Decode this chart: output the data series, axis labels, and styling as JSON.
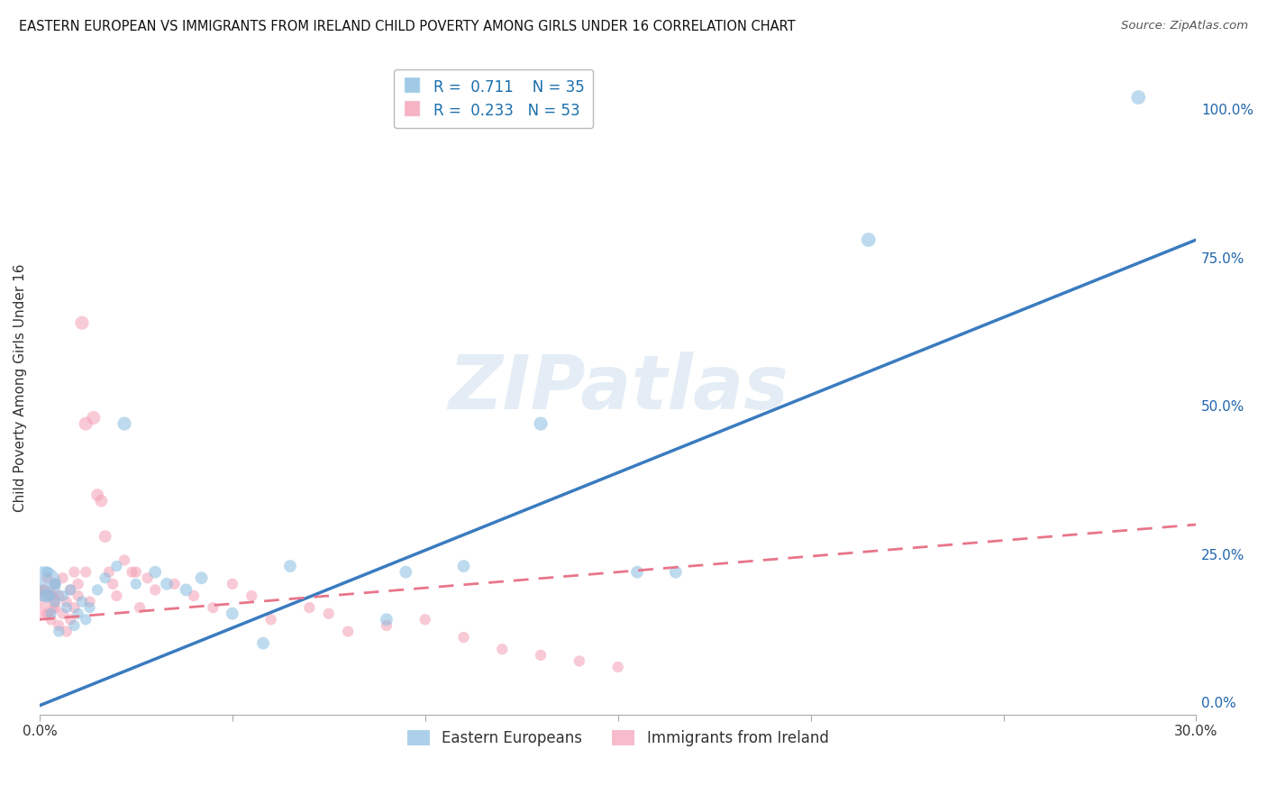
{
  "title": "EASTERN EUROPEAN VS IMMIGRANTS FROM IRELAND CHILD POVERTY AMONG GIRLS UNDER 16 CORRELATION CHART",
  "source": "Source: ZipAtlas.com",
  "ylabel": "Child Poverty Among Girls Under 16",
  "xlim": [
    0.0,
    0.3
  ],
  "ylim": [
    -0.02,
    1.08
  ],
  "xticks": [
    0.0,
    0.05,
    0.1,
    0.15,
    0.2,
    0.25,
    0.3
  ],
  "xticklabels": [
    "0.0%",
    "",
    "",
    "",
    "",
    "",
    "30.0%"
  ],
  "yticks_right": [
    0.0,
    0.25,
    0.5,
    0.75,
    1.0
  ],
  "ytickslabels_right": [
    "0.0%",
    "25.0%",
    "50.0%",
    "75.0%",
    "100.0%"
  ],
  "blue_color": "#89bde0",
  "pink_color": "#f4a0b5",
  "blue_line_color": "#3a7bbf",
  "pink_line_color": "#e8758a",
  "watermark_text": "ZIPatlas",
  "blue_scatter_x": [
    0.001,
    0.002,
    0.002,
    0.003,
    0.004,
    0.004,
    0.005,
    0.006,
    0.007,
    0.008,
    0.009,
    0.01,
    0.011,
    0.012,
    0.013,
    0.015,
    0.017,
    0.02,
    0.022,
    0.025,
    0.03,
    0.033,
    0.038,
    0.042,
    0.05,
    0.058,
    0.065,
    0.09,
    0.095,
    0.11,
    0.13,
    0.155,
    0.165,
    0.215,
    0.285
  ],
  "blue_scatter_y": [
    0.2,
    0.18,
    0.22,
    0.15,
    0.17,
    0.2,
    0.12,
    0.18,
    0.16,
    0.19,
    0.13,
    0.15,
    0.17,
    0.14,
    0.16,
    0.19,
    0.21,
    0.23,
    0.47,
    0.2,
    0.22,
    0.2,
    0.19,
    0.21,
    0.15,
    0.1,
    0.23,
    0.14,
    0.22,
    0.23,
    0.47,
    0.22,
    0.22,
    0.78,
    1.02
  ],
  "blue_scatter_size": [
    800,
    120,
    80,
    80,
    80,
    80,
    80,
    80,
    80,
    80,
    80,
    80,
    80,
    80,
    80,
    80,
    80,
    80,
    120,
    80,
    100,
    100,
    100,
    100,
    100,
    100,
    100,
    100,
    100,
    100,
    120,
    100,
    100,
    130,
    130
  ],
  "pink_scatter_x": [
    0.001,
    0.001,
    0.002,
    0.002,
    0.003,
    0.003,
    0.004,
    0.004,
    0.005,
    0.005,
    0.006,
    0.006,
    0.007,
    0.007,
    0.008,
    0.008,
    0.009,
    0.009,
    0.01,
    0.01,
    0.011,
    0.012,
    0.012,
    0.013,
    0.014,
    0.015,
    0.016,
    0.017,
    0.018,
    0.019,
    0.02,
    0.022,
    0.024,
    0.025,
    0.026,
    0.028,
    0.03,
    0.035,
    0.04,
    0.045,
    0.05,
    0.055,
    0.06,
    0.07,
    0.075,
    0.08,
    0.09,
    0.1,
    0.11,
    0.12,
    0.13,
    0.14,
    0.15
  ],
  "pink_scatter_y": [
    0.17,
    0.19,
    0.15,
    0.21,
    0.18,
    0.14,
    0.16,
    0.2,
    0.13,
    0.18,
    0.15,
    0.21,
    0.12,
    0.17,
    0.19,
    0.14,
    0.22,
    0.16,
    0.2,
    0.18,
    0.64,
    0.47,
    0.22,
    0.17,
    0.48,
    0.35,
    0.34,
    0.28,
    0.22,
    0.2,
    0.18,
    0.24,
    0.22,
    0.22,
    0.16,
    0.21,
    0.19,
    0.2,
    0.18,
    0.16,
    0.2,
    0.18,
    0.14,
    0.16,
    0.15,
    0.12,
    0.13,
    0.14,
    0.11,
    0.09,
    0.08,
    0.07,
    0.06
  ],
  "pink_scatter_size": [
    700,
    80,
    80,
    80,
    80,
    80,
    80,
    80,
    80,
    80,
    80,
    80,
    80,
    80,
    80,
    80,
    80,
    80,
    80,
    80,
    120,
    120,
    80,
    80,
    120,
    100,
    100,
    100,
    80,
    80,
    80,
    80,
    80,
    80,
    80,
    80,
    80,
    80,
    80,
    80,
    80,
    80,
    80,
    80,
    80,
    80,
    80,
    80,
    80,
    80,
    80,
    80,
    80
  ],
  "blue_line_x0": 0.0,
  "blue_line_y0": -0.005,
  "blue_line_x1": 0.3,
  "blue_line_y1": 0.78,
  "pink_line_x0": 0.0,
  "pink_line_y0": 0.14,
  "pink_line_x1": 0.3,
  "pink_line_y1": 0.3,
  "background_color": "#ffffff",
  "grid_color": "#d0d0d0",
  "title_color": "#111111",
  "right_axis_color": "#2166ac",
  "legend_blue_label": "R =  0.711    N = 35",
  "legend_pink_label": "R =  0.233   N = 53",
  "legend_bottom_blue": "Eastern Europeans",
  "legend_bottom_pink": "Immigrants from Ireland"
}
